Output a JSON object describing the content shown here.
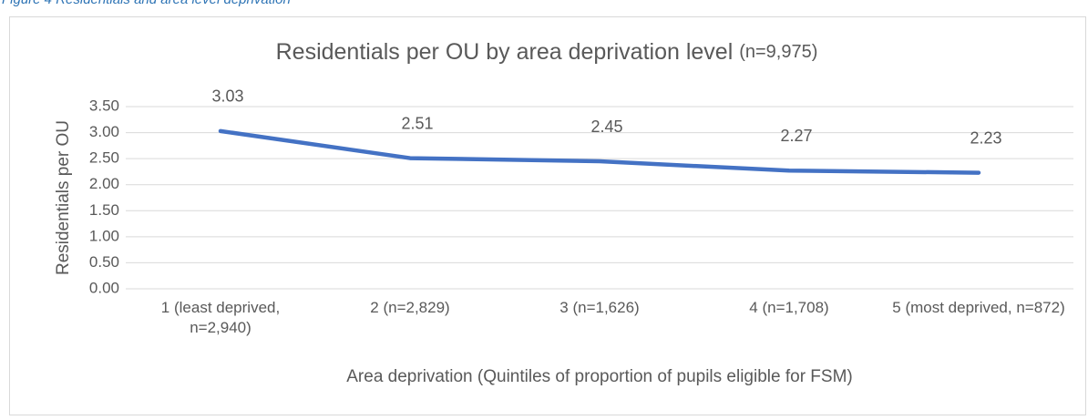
{
  "caption": "Figure 4 Residentials and area level deprivation",
  "chart_data": {
    "type": "line",
    "title": "Residentials per OU by area deprivation level",
    "title_note": "(n=9,975)",
    "x_label": "Area deprivation (Quintiles of proportion of pupils eligible for FSM)",
    "y_label": "Residentials per OU",
    "categories": [
      "1 (least deprived, n=2,940)",
      "2 (n=2,829)",
      "3 (n=1,626)",
      "4 (n=1,708)",
      "5 (most deprived, n=872)"
    ],
    "series": [
      {
        "name": "Residentials per OU",
        "color": "#4472c4",
        "values": [
          3.03,
          2.51,
          2.45,
          2.27,
          2.23
        ]
      }
    ],
    "ylim": [
      0,
      3.5
    ],
    "yticks": [
      {
        "value": 0,
        "label": "0.00"
      },
      {
        "value": 0.5,
        "label": "0.50"
      },
      {
        "value": 1,
        "label": "1.00"
      },
      {
        "value": 1.5,
        "label": "1.50"
      },
      {
        "value": 2,
        "label": "2.00"
      },
      {
        "value": 2.5,
        "label": "2.50"
      },
      {
        "value": 3,
        "label": "3.00"
      },
      {
        "value": 3.5,
        "label": "3.50"
      }
    ],
    "grid": true
  }
}
